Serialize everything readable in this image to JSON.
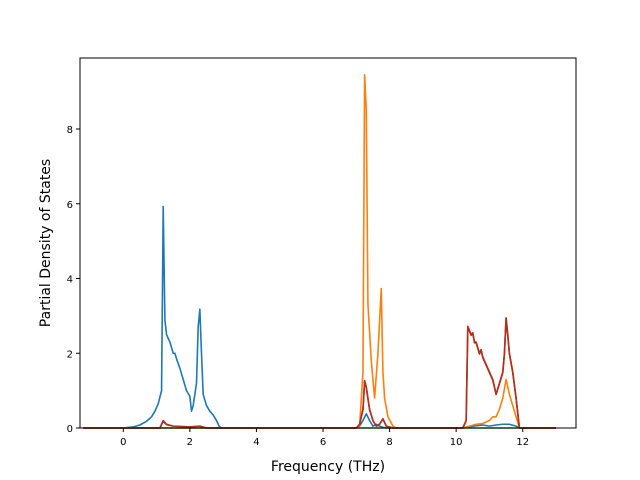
{
  "chart_data": {
    "type": "line",
    "title": "",
    "xlabel": "Frequency (THz)",
    "ylabel": "Partial Density of States",
    "xlim": [
      -1.3,
      13.6
    ],
    "ylim": [
      0,
      9.9
    ],
    "xticks": [
      0,
      2,
      4,
      6,
      8,
      10,
      12
    ],
    "yticks": [
      0,
      2,
      4,
      6,
      8
    ],
    "grid": false,
    "legend": "none",
    "series": [
      {
        "color": "#1f77b4",
        "x": [
          -1.2,
          0.0,
          0.3,
          0.5,
          0.7,
          0.85,
          0.95,
          1.05,
          1.15,
          1.2,
          1.25,
          1.3,
          1.4,
          1.5,
          1.55,
          1.6,
          1.7,
          1.8,
          1.9,
          2.0,
          2.05,
          2.1,
          2.2,
          2.25,
          2.3,
          2.35,
          2.4,
          2.5,
          2.6,
          2.7,
          2.8,
          2.88,
          2.95,
          3.2,
          7.0,
          7.1,
          7.2,
          7.3,
          7.4,
          7.5,
          7.6,
          7.7,
          7.8,
          7.9,
          8.0,
          10.2,
          10.4,
          10.6,
          10.8,
          11.0,
          11.2,
          11.4,
          11.6,
          11.8,
          11.9,
          13.0
        ],
        "y": [
          0,
          0,
          0.03,
          0.08,
          0.18,
          0.3,
          0.45,
          0.65,
          1.0,
          5.93,
          2.9,
          2.5,
          2.3,
          2.0,
          2.0,
          1.85,
          1.6,
          1.3,
          1.0,
          0.85,
          0.45,
          0.6,
          1.2,
          2.7,
          3.18,
          2.0,
          0.9,
          0.6,
          0.45,
          0.35,
          0.2,
          0.05,
          0,
          0,
          0,
          0.05,
          0.2,
          0.38,
          0.2,
          0.05,
          0.1,
          0.05,
          0.02,
          0,
          0,
          0,
          0.03,
          0.06,
          0.08,
          0.05,
          0.08,
          0.1,
          0.1,
          0.05,
          0,
          0
        ]
      },
      {
        "color": "#ff7f0e",
        "x": [
          -1.2,
          7.0,
          7.1,
          7.2,
          7.25,
          7.3,
          7.35,
          7.45,
          7.55,
          7.65,
          7.75,
          7.8,
          7.85,
          7.95,
          8.1,
          8.2,
          10.2,
          10.4,
          10.6,
          10.8,
          11.0,
          11.1,
          11.2,
          11.3,
          11.4,
          11.5,
          11.6,
          11.7,
          11.8,
          11.9,
          13.0
        ],
        "y": [
          0,
          0,
          0.05,
          1.5,
          9.45,
          8.5,
          3.3,
          1.8,
          0.8,
          2.0,
          3.73,
          1.5,
          0.8,
          0.3,
          0.05,
          0,
          0,
          0.05,
          0.1,
          0.12,
          0.2,
          0.3,
          0.3,
          0.5,
          0.8,
          1.3,
          0.9,
          0.6,
          0.3,
          0,
          0
        ]
      },
      {
        "color": "#2ca02c",
        "x": [
          -1.2,
          13.0
        ],
        "y": [
          0,
          0
        ]
      },
      {
        "color": "#d62728",
        "x": [
          -1.2,
          1.1,
          1.2,
          1.3,
          1.5,
          2.0,
          2.3,
          2.5,
          7.0,
          7.1,
          7.2,
          7.25,
          7.3,
          7.4,
          7.5,
          7.6,
          7.7,
          7.8,
          7.9,
          8.1,
          10.2,
          10.3,
          10.35,
          10.45,
          10.5,
          10.55,
          10.6,
          10.7,
          10.75,
          10.8,
          10.9,
          11.0,
          11.1,
          11.2,
          11.3,
          11.4,
          11.45,
          11.5,
          11.55,
          11.6,
          11.7,
          11.8,
          11.9,
          13.0
        ],
        "y": [
          0,
          0,
          0.2,
          0.1,
          0.05,
          0.03,
          0.05,
          0,
          0,
          0.1,
          0.5,
          1.27,
          1.1,
          0.5,
          0.2,
          0.05,
          0.1,
          0.25,
          0.05,
          0,
          0,
          0.2,
          2.72,
          2.5,
          2.55,
          2.3,
          2.3,
          2.0,
          2.1,
          1.9,
          1.7,
          1.5,
          1.3,
          0.9,
          1.2,
          1.5,
          2.0,
          2.95,
          2.5,
          2.0,
          1.5,
          0.8,
          0,
          0
        ]
      },
      {
        "color": "#b03020",
        "x": [
          -1.2,
          1.1,
          1.2,
          1.3,
          1.5,
          2.0,
          2.3,
          2.5,
          7.0,
          7.1,
          7.2,
          7.25,
          7.3,
          7.4,
          7.5,
          7.6,
          7.7,
          7.8,
          7.9,
          8.1,
          10.2,
          10.3,
          10.35,
          10.45,
          10.5,
          10.55,
          10.6,
          10.7,
          10.75,
          10.8,
          10.9,
          11.0,
          11.1,
          11.2,
          11.3,
          11.4,
          11.45,
          11.5,
          11.55,
          11.6,
          11.7,
          11.8,
          11.9,
          13.0
        ],
        "y": [
          0,
          0,
          0.18,
          0.09,
          0.05,
          0.03,
          0.05,
          0,
          0,
          0.1,
          0.48,
          1.25,
          1.08,
          0.48,
          0.2,
          0.05,
          0.1,
          0.24,
          0.05,
          0,
          0,
          0.2,
          2.7,
          2.48,
          2.52,
          2.28,
          2.28,
          1.98,
          2.08,
          1.88,
          1.68,
          1.48,
          1.28,
          0.9,
          1.18,
          1.48,
          1.98,
          2.93,
          2.48,
          1.98,
          1.48,
          0.8,
          0,
          0
        ]
      }
    ]
  }
}
